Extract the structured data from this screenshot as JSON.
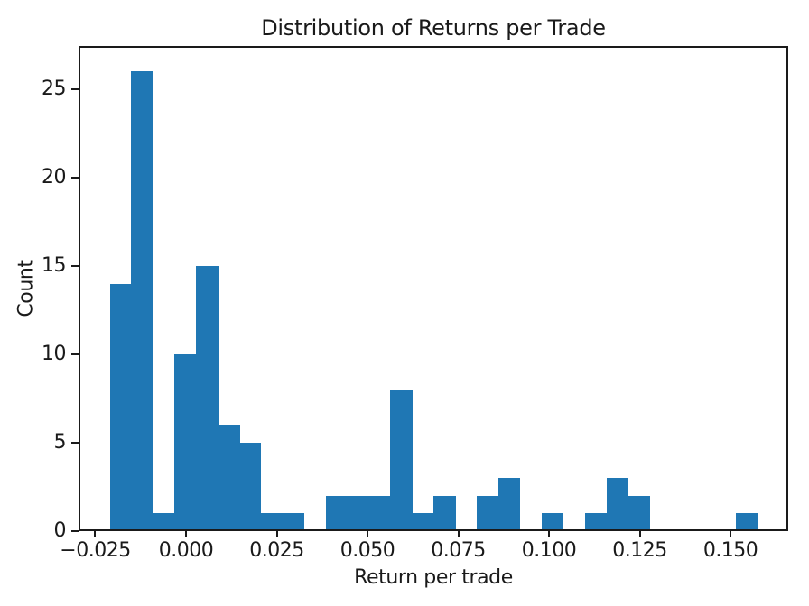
{
  "chart_data": {
    "type": "bar",
    "subtype": "histogram",
    "title": "Distribution of Returns per Trade",
    "xlabel": "Return per trade",
    "ylabel": "Count",
    "bar_color": "#1f77b4",
    "axis_color": "#1a1a1a",
    "grid": false,
    "legend": null,
    "xlim": [
      -0.0296,
      0.1659
    ],
    "ylim": [
      0,
      27.45
    ],
    "bins": {
      "start": -0.021,
      "width": 0.005947,
      "count": 30
    },
    "counts": [
      14,
      26,
      1,
      10,
      15,
      6,
      5,
      1,
      1,
      0,
      2,
      2,
      2,
      8,
      1,
      2,
      0,
      2,
      3,
      0,
      1,
      0,
      1,
      3,
      2,
      0,
      0,
      0,
      0,
      1
    ],
    "x_ticks": [
      {
        "value": -0.025,
        "label": "−0.025"
      },
      {
        "value": 0.0,
        "label": "0.000"
      },
      {
        "value": 0.025,
        "label": "0.025"
      },
      {
        "value": 0.05,
        "label": "0.050"
      },
      {
        "value": 0.075,
        "label": "0.075"
      },
      {
        "value": 0.1,
        "label": "0.100"
      },
      {
        "value": 0.125,
        "label": "0.125"
      },
      {
        "value": 0.15,
        "label": "0.150"
      }
    ],
    "y_ticks": [
      {
        "value": 0,
        "label": "0"
      },
      {
        "value": 5,
        "label": "5"
      },
      {
        "value": 10,
        "label": "10"
      },
      {
        "value": 15,
        "label": "15"
      },
      {
        "value": 20,
        "label": "20"
      },
      {
        "value": 25,
        "label": "25"
      }
    ]
  }
}
